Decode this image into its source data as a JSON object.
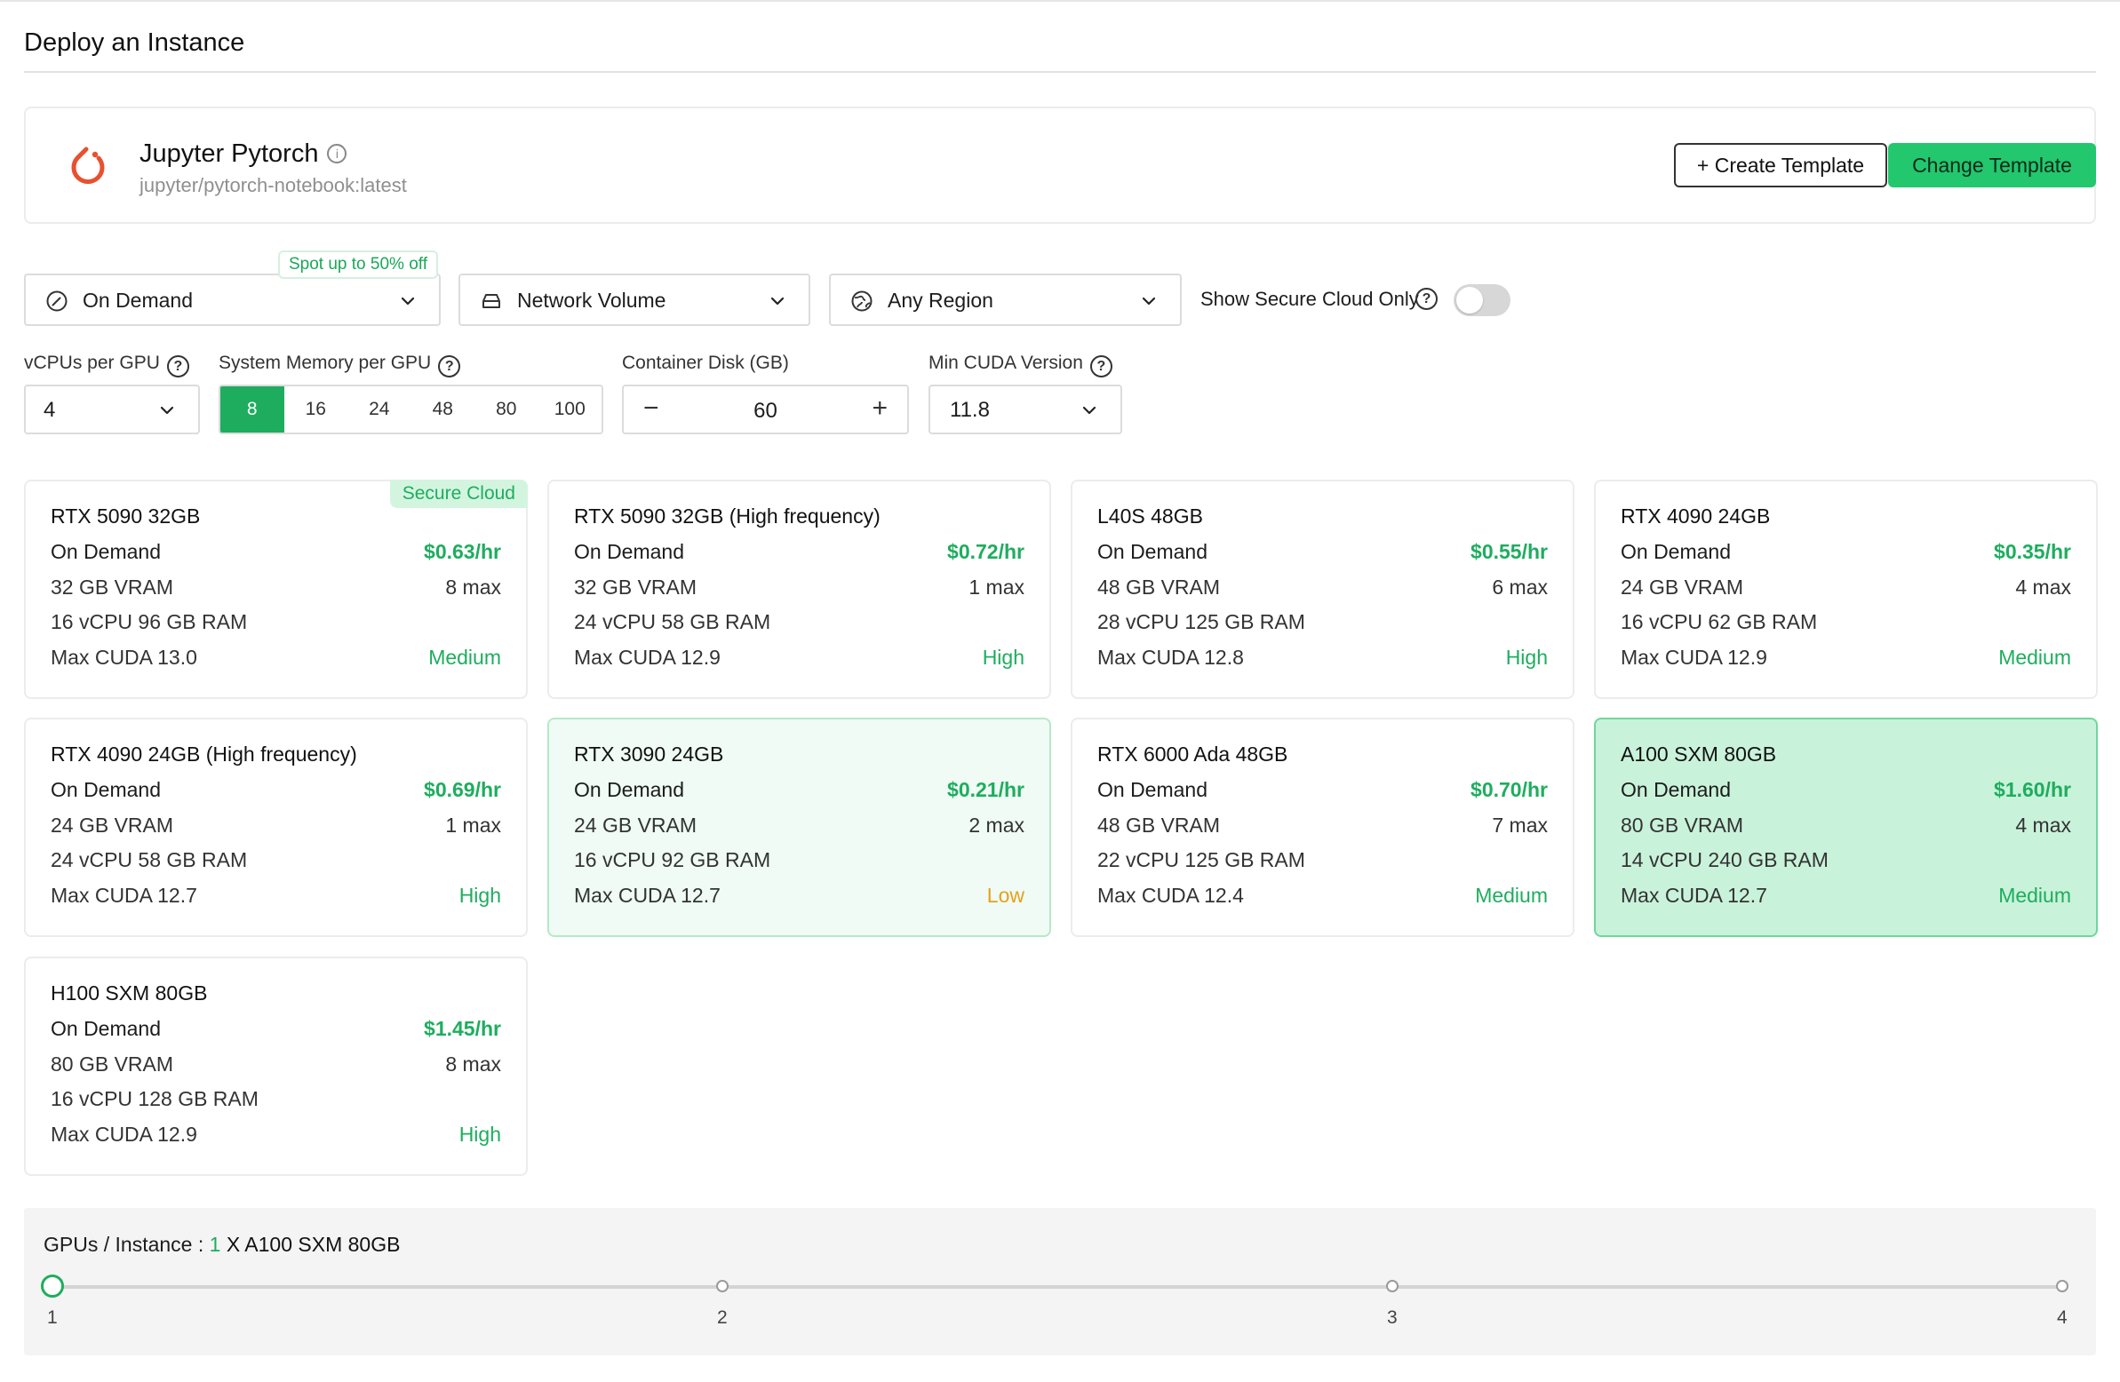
{
  "page": {
    "title": "Deploy an Instance"
  },
  "template": {
    "name": "Jupyter Pytorch",
    "image": "jupyter/pytorch-notebook:latest",
    "logo_icon": "pytorch-logo-icon",
    "create_label": "+ Create Template",
    "change_label": "Change Template"
  },
  "pricing": {
    "spot_badge": "Spot up to 50% off",
    "mode": "On Demand",
    "volume": "Network Volume",
    "region": "Any Region",
    "secure_label": "Show Secure Cloud Only",
    "secure_enabled": false
  },
  "filters": {
    "vcpu": {
      "label": "vCPUs per GPU",
      "value": "4"
    },
    "memory": {
      "label": "System Memory per GPU",
      "options": [
        "8",
        "16",
        "24",
        "48",
        "80",
        "100"
      ],
      "selected": "8"
    },
    "disk": {
      "label": "Container Disk (GB)",
      "value": "60",
      "minus": "−",
      "plus": "+"
    },
    "cuda": {
      "label": "Min CUDA Version",
      "value": "11.8"
    }
  },
  "gpus": [
    {
      "name": "RTX 5090 32GB",
      "mode": "On Demand",
      "price": "$0.63/hr",
      "vram": "32 GB VRAM",
      "max": "8 max",
      "specs": "16 vCPU 96 GB RAM",
      "cuda": "Max CUDA 13.0",
      "availability": "Medium",
      "badge": "Secure Cloud"
    },
    {
      "name": "RTX 5090 32GB (High frequency)",
      "mode": "On Demand",
      "price": "$0.72/hr",
      "vram": "32 GB VRAM",
      "max": "1 max",
      "specs": "24 vCPU 58 GB RAM",
      "cuda": "Max CUDA 12.9",
      "availability": "High"
    },
    {
      "name": "L40S 48GB",
      "mode": "On Demand",
      "price": "$0.55/hr",
      "vram": "48 GB VRAM",
      "max": "6 max",
      "specs": "28 vCPU 125 GB RAM",
      "cuda": "Max CUDA 12.8",
      "availability": "High"
    },
    {
      "name": "RTX 4090 24GB",
      "mode": "On Demand",
      "price": "$0.35/hr",
      "vram": "24 GB VRAM",
      "max": "4 max",
      "specs": "16 vCPU 62 GB RAM",
      "cuda": "Max CUDA 12.9",
      "availability": "Medium"
    },
    {
      "name": "RTX 4090 24GB (High frequency)",
      "mode": "On Demand",
      "price": "$0.69/hr",
      "vram": "24 GB VRAM",
      "max": "1 max",
      "specs": "24 vCPU 58 GB RAM",
      "cuda": "Max CUDA 12.7",
      "availability": "High"
    },
    {
      "name": "RTX 3090 24GB",
      "mode": "On Demand",
      "price": "$0.21/hr",
      "vram": "24 GB VRAM",
      "max": "2 max",
      "specs": "16 vCPU 92 GB RAM",
      "cuda": "Max CUDA 12.7",
      "availability": "Low"
    },
    {
      "name": "RTX 6000 Ada 48GB",
      "mode": "On Demand",
      "price": "$0.70/hr",
      "vram": "48 GB VRAM",
      "max": "7 max",
      "specs": "22 vCPU 125 GB RAM",
      "cuda": "Max CUDA 12.4",
      "availability": "Medium"
    },
    {
      "name": "A100 SXM 80GB",
      "mode": "On Demand",
      "price": "$1.60/hr",
      "vram": "80 GB VRAM",
      "max": "4 max",
      "specs": "14 vCPU 240 GB RAM",
      "cuda": "Max CUDA 12.7",
      "availability": "Medium",
      "selected": true
    },
    {
      "name": "H100 SXM 80GB",
      "mode": "On Demand",
      "price": "$1.45/hr",
      "vram": "80 GB VRAM",
      "max": "8 max",
      "specs": "16 vCPU 128 GB RAM",
      "cuda": "Max CUDA 12.9",
      "availability": "High"
    }
  ],
  "instance": {
    "label": "GPUs / Instance : ",
    "count": "1",
    "gpu": " X A100 SXM 80GB",
    "ticks": [
      "1",
      "2",
      "3",
      "4"
    ],
    "value": 1
  },
  "colors": {
    "accent": "#1ead5e",
    "button_green": "#22c76e",
    "low": "#e6a11a",
    "selected_bg": "#c9f2da"
  }
}
